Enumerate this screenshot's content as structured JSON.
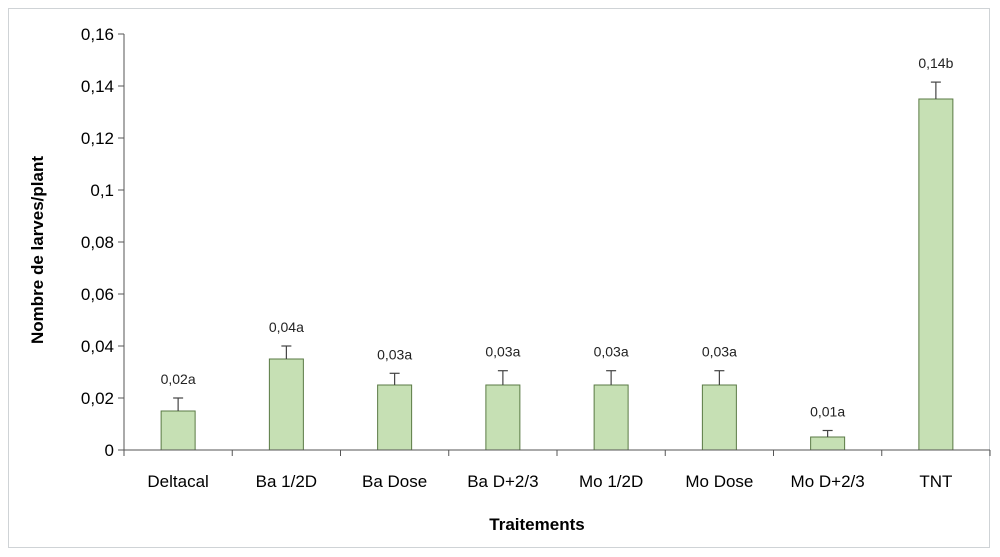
{
  "chart_data": {
    "type": "bar",
    "title": "",
    "xlabel": "Traitements",
    "ylabel": "Nombre de larves/plant",
    "categories": [
      "Deltacal",
      "Ba 1/2D",
      "Ba Dose",
      "Ba D+2/3",
      "Mo 1/2D",
      "Mo Dose",
      "Mo D+2/3",
      "TNT"
    ],
    "values": [
      0.015,
      0.035,
      0.025,
      0.025,
      0.025,
      0.025,
      0.005,
      0.135
    ],
    "errors": [
      0.005,
      0.005,
      0.0045,
      0.0055,
      0.0055,
      0.0055,
      0.0025,
      0.0065
    ],
    "data_labels": [
      "0,02a",
      "0,04a",
      "0,03a",
      "0,03a",
      "0,03a",
      "0,03a",
      "0,01a",
      "0,14b"
    ],
    "ylim": [
      0,
      0.16
    ],
    "yticks": [
      0,
      0.02,
      0.04,
      0.06,
      0.08,
      0.1,
      0.12,
      0.14,
      0.16
    ],
    "ytick_labels": [
      "0",
      "0,02",
      "0,04",
      "0,06",
      "0,08",
      "0,1",
      "0,12",
      "0,14",
      "0,16"
    ],
    "grid": false,
    "legend": "none",
    "colors": {
      "bar_fill": "#c6e0b4",
      "bar_stroke": "#5a7a44",
      "axis": "#555555"
    }
  }
}
